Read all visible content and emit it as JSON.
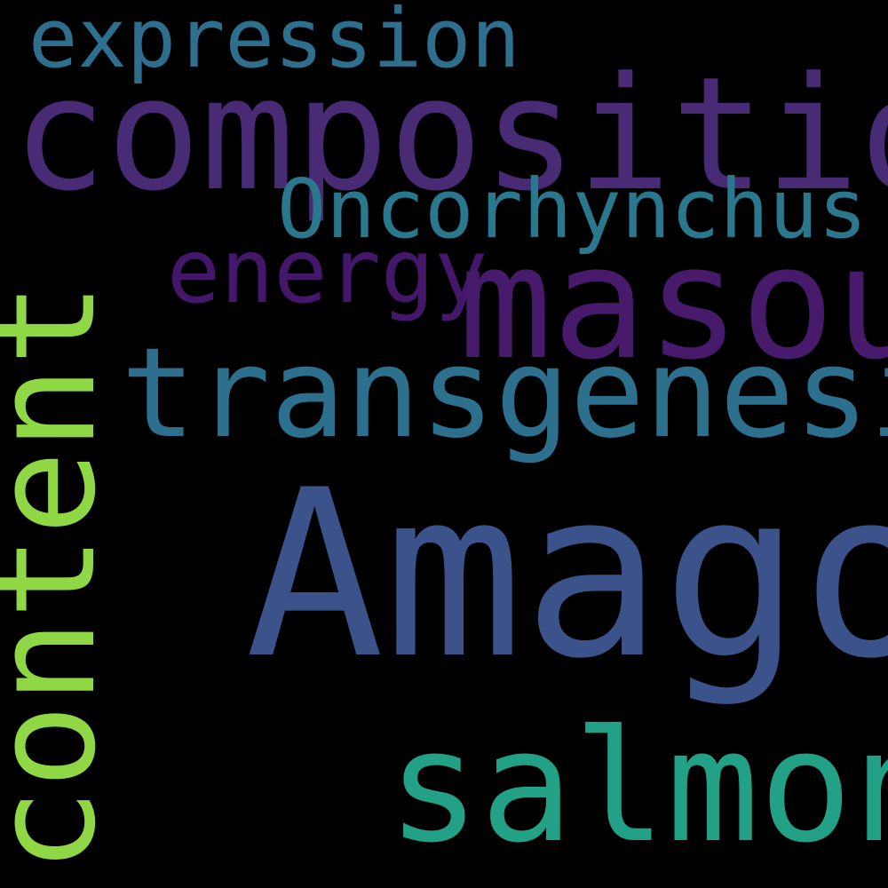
{
  "background": "#000000",
  "words": {
    "expression": {
      "text": "expression",
      "color": "#2f6f8e"
    },
    "composition": {
      "text": "composition",
      "color": "#482a75"
    },
    "oncorhynchus": {
      "text": "Oncorhynchus",
      "color": "#2a788e"
    },
    "energy": {
      "text": "energy",
      "color": "#45176b"
    },
    "masou": {
      "text": "masou",
      "color": "#481a6c"
    },
    "transgenesis": {
      "text": "transgenesis",
      "color": "#2d708e"
    },
    "amago": {
      "text": "Amago",
      "color": "#3b528b"
    },
    "salmon": {
      "text": "salmon",
      "color": "#22a187"
    },
    "content": {
      "text": "content",
      "color": "#8fd744"
    }
  }
}
